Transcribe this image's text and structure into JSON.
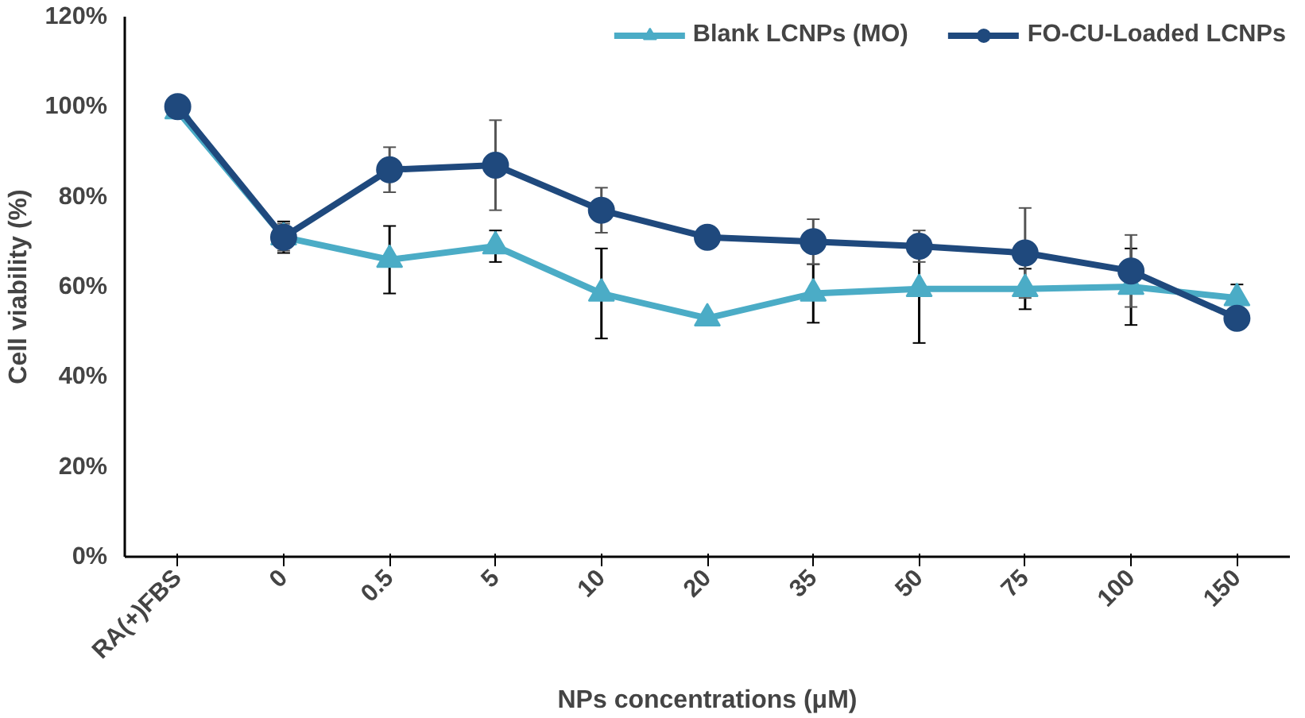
{
  "chart_data": {
    "type": "line",
    "xlabel": "NPs concentrations (μM)",
    "ylabel": "Cell viability (%)",
    "categories": [
      "RA(+)FBS",
      "0",
      "0.5",
      "5",
      "10",
      "20",
      "35",
      "50",
      "75",
      "100",
      "150"
    ],
    "ylim": [
      0,
      120
    ],
    "yticks": [
      {
        "value": 0,
        "label": "0%"
      },
      {
        "value": 20,
        "label": "20%"
      },
      {
        "value": 40,
        "label": "40%"
      },
      {
        "value": 60,
        "label": "60%"
      },
      {
        "value": 80,
        "label": "80%"
      },
      {
        "value": 100,
        "label": "100%"
      },
      {
        "value": 120,
        "label": "120%"
      }
    ],
    "grid": false,
    "legend": "top",
    "line_style": "solid",
    "series": [
      {
        "name": "Blank LCNPs (MO)",
        "color": "#4bacc6",
        "marker": "triangle",
        "values": [
          99,
          71,
          66,
          69,
          58.5,
          53,
          58.5,
          59.5,
          59.5,
          60,
          57.5
        ],
        "errors": [
          null,
          3.5,
          7.5,
          3.5,
          10,
          null,
          6.5,
          12,
          4.5,
          8.5,
          3
        ]
      },
      {
        "name": "FO-CU-Loaded LCNPs",
        "color": "#1f497d",
        "marker": "circle",
        "values": [
          100,
          71,
          86,
          87,
          77,
          71,
          70,
          69,
          67.5,
          63.5,
          53
        ],
        "errors": [
          null,
          3,
          5,
          10,
          5,
          null,
          5,
          3.5,
          10,
          8,
          null
        ]
      }
    ]
  }
}
